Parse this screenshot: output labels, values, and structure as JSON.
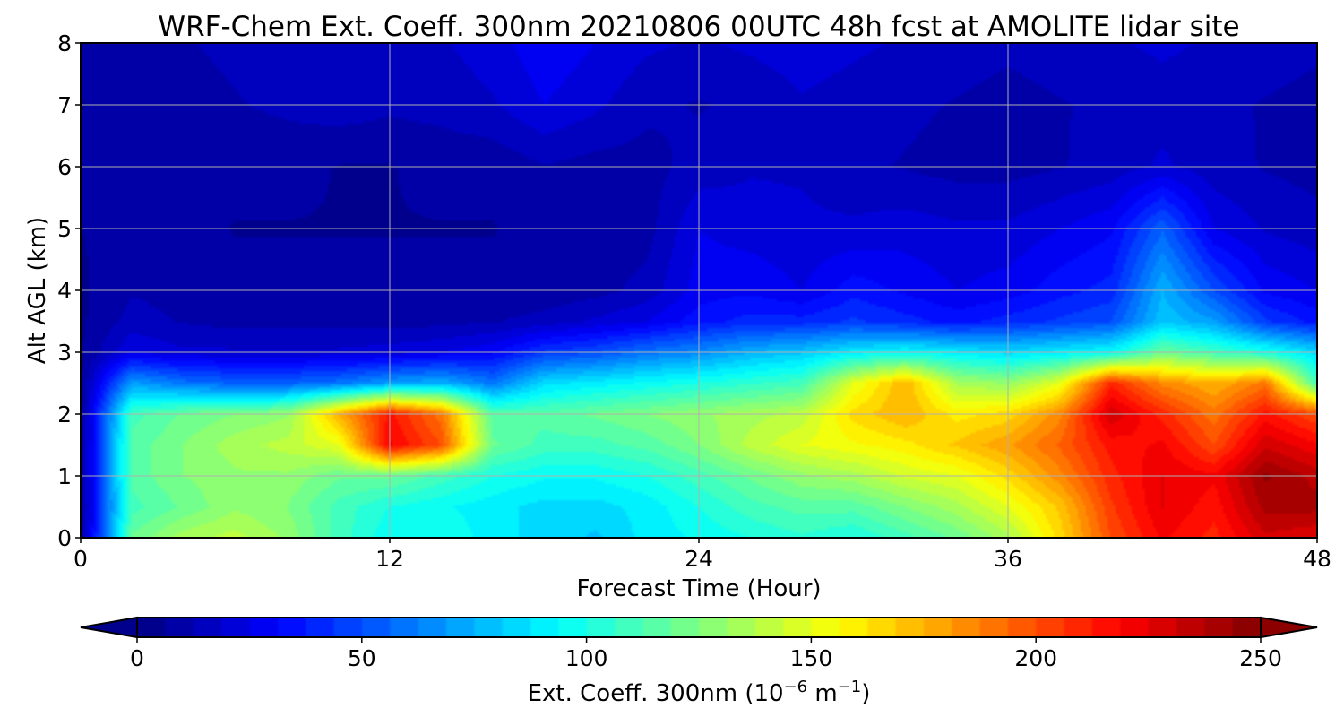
{
  "chart_data": {
    "type": "heatmap",
    "title": "WRF-Chem Ext. Coeff. 300nm  20210806 00UTC 48h fcst at AMOLITE lidar site",
    "xlabel": "Forecast Time (Hour)",
    "ylabel": "Alt AGL (km)",
    "xlim": [
      0,
      48
    ],
    "ylim": [
      0,
      8
    ],
    "x_ticks": [
      0,
      12,
      24,
      36,
      48
    ],
    "y_ticks": [
      0,
      1,
      2,
      3,
      4,
      5,
      6,
      7,
      8
    ],
    "grid": true,
    "colormap": "jet",
    "colorbar": {
      "orientation": "horizontal",
      "placement": "bottom",
      "label_prefix": "Ext. Coeff. 300nm  (10",
      "label_exp1": "−6",
      "label_mid": " m",
      "label_exp2": "−1",
      "label_suffix": ")",
      "range": [
        0,
        250
      ],
      "extend": "both",
      "ticks": [
        0,
        50,
        100,
        150,
        200,
        250
      ]
    },
    "x": [
      0,
      2,
      4,
      6,
      8,
      10,
      12,
      14,
      16,
      18,
      20,
      22,
      24,
      26,
      28,
      30,
      32,
      34,
      36,
      38,
      40,
      42,
      44,
      46,
      48
    ],
    "y": [
      0,
      0.5,
      1,
      1.5,
      2,
      2.5,
      3,
      3.5,
      4,
      5,
      6,
      7,
      8
    ],
    "values": [
      [
        5,
        120,
        135,
        140,
        130,
        110,
        95,
        100,
        90,
        85,
        80,
        90,
        95,
        100,
        105,
        100,
        110,
        120,
        135,
        165,
        200,
        220,
        210,
        230,
        225
      ],
      [
        5,
        110,
        120,
        130,
        125,
        110,
        100,
        95,
        90,
        85,
        85,
        90,
        100,
        110,
        115,
        115,
        125,
        135,
        150,
        170,
        205,
        225,
        215,
        240,
        240
      ],
      [
        5,
        115,
        125,
        130,
        130,
        120,
        120,
        110,
        100,
        95,
        95,
        100,
        110,
        120,
        130,
        135,
        145,
        150,
        165,
        185,
        210,
        225,
        220,
        245,
        235
      ],
      [
        5,
        115,
        125,
        135,
        140,
        150,
        220,
        200,
        120,
        110,
        110,
        115,
        125,
        140,
        150,
        155,
        160,
        170,
        180,
        195,
        215,
        220,
        200,
        230,
        220
      ],
      [
        5,
        110,
        120,
        125,
        130,
        175,
        215,
        190,
        115,
        115,
        120,
        125,
        130,
        135,
        140,
        165,
        175,
        160,
        165,
        185,
        230,
        210,
        190,
        215,
        200
      ],
      [
        5,
        70,
        60,
        55,
        55,
        60,
        70,
        75,
        60,
        85,
        90,
        95,
        100,
        105,
        110,
        150,
        175,
        135,
        130,
        150,
        210,
        185,
        175,
        190,
        110
      ],
      [
        5,
        25,
        20,
        20,
        20,
        20,
        22,
        25,
        30,
        45,
        50,
        60,
        65,
        75,
        80,
        90,
        95,
        90,
        85,
        90,
        95,
        120,
        110,
        100,
        85
      ],
      [
        5,
        15,
        12,
        10,
        10,
        10,
        10,
        10,
        12,
        15,
        20,
        25,
        35,
        40,
        40,
        45,
        40,
        35,
        40,
        45,
        50,
        80,
        70,
        45,
        35
      ],
      [
        5,
        12,
        10,
        8,
        8,
        8,
        8,
        8,
        8,
        8,
        10,
        15,
        28,
        30,
        25,
        35,
        30,
        25,
        28,
        35,
        40,
        75,
        50,
        30,
        25
      ],
      [
        6,
        10,
        8,
        6,
        6,
        6,
        6,
        6,
        6,
        8,
        8,
        10,
        25,
        22,
        20,
        20,
        22,
        20,
        20,
        25,
        30,
        55,
        25,
        18,
        15
      ],
      [
        8,
        8,
        8,
        8,
        8,
        6,
        6,
        8,
        8,
        12,
        10,
        10,
        15,
        18,
        18,
        14,
        12,
        10,
        10,
        12,
        15,
        20,
        15,
        12,
        10
      ],
      [
        6,
        8,
        10,
        12,
        14,
        16,
        14,
        15,
        18,
        25,
        20,
        14,
        12,
        14,
        18,
        16,
        14,
        12,
        10,
        12,
        14,
        16,
        14,
        12,
        10
      ],
      [
        8,
        10,
        12,
        14,
        16,
        18,
        16,
        18,
        22,
        30,
        25,
        20,
        18,
        20,
        22,
        20,
        18,
        16,
        14,
        16,
        18,
        20,
        18,
        16,
        14
      ]
    ]
  }
}
